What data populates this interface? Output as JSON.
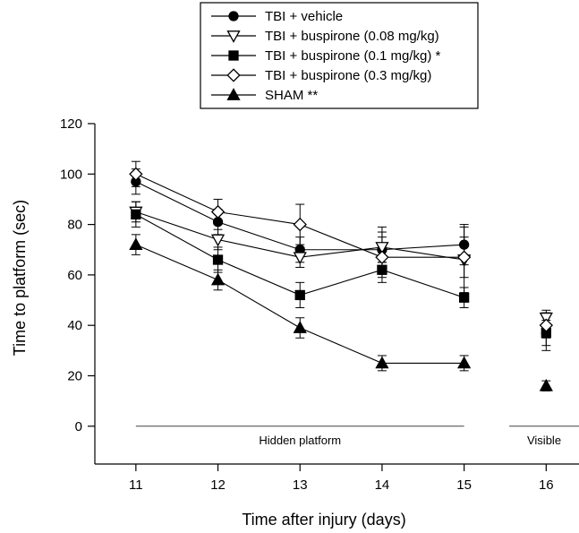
{
  "chart_data": {
    "type": "line",
    "xlabel": "Time after injury (days)",
    "ylabel": "Time to platform (sec)",
    "xlim": [
      10.5,
      16.4
    ],
    "ylim": [
      -15,
      120
    ],
    "x_ticks": [
      11,
      12,
      13,
      14,
      15,
      16
    ],
    "y_ticks": [
      0,
      20,
      40,
      60,
      80,
      100,
      120
    ],
    "grid": false,
    "legend_position": "top",
    "phases": [
      {
        "label": "Hidden platform",
        "x_start": 11,
        "x_end": 15,
        "y": 0
      },
      {
        "label": "Visible",
        "x_start": 15.55,
        "x_end": 16.4,
        "y": 0
      }
    ],
    "series": [
      {
        "name": "TBI + vehicle",
        "marker": "circle",
        "filled": true,
        "points": [
          {
            "x": 11,
            "y": 97,
            "err": 5
          },
          {
            "x": 12,
            "y": 81,
            "err": 5
          },
          {
            "x": 13,
            "y": 70,
            "err": 5
          },
          {
            "x": 14,
            "y": 70,
            "err": 5
          },
          {
            "x": 15,
            "y": 72,
            "err": 8
          },
          {
            "x": 16,
            "y": 37,
            "err": 5,
            "connected": false
          }
        ]
      },
      {
        "name": "TBI + buspirone (0.08 mg/kg)",
        "marker": "triangle-down",
        "filled": false,
        "points": [
          {
            "x": 11,
            "y": 85,
            "err": 4
          },
          {
            "x": 12,
            "y": 74,
            "err": 4
          },
          {
            "x": 13,
            "y": 67,
            "err": 4
          },
          {
            "x": 14,
            "y": 71,
            "err": 8
          },
          {
            "x": 15,
            "y": 66,
            "err": 13
          },
          {
            "x": 16,
            "y": 43,
            "err": 3,
            "connected": false
          }
        ]
      },
      {
        "name": "TBI + buspirone (0.1 mg/kg) *",
        "marker": "square",
        "filled": true,
        "points": [
          {
            "x": 11,
            "y": 84,
            "err": 5
          },
          {
            "x": 12,
            "y": 66,
            "err": 5
          },
          {
            "x": 13,
            "y": 52,
            "err": 5
          },
          {
            "x": 14,
            "y": 62,
            "err": 3
          },
          {
            "x": 15,
            "y": 51,
            "err": 4
          },
          {
            "x": 16,
            "y": 37,
            "err": 7,
            "connected": false
          }
        ]
      },
      {
        "name": "TBI + buspirone (0.3 mg/kg)",
        "marker": "diamond",
        "filled": false,
        "points": [
          {
            "x": 11,
            "y": 100,
            "err": 5
          },
          {
            "x": 12,
            "y": 85,
            "err": 5
          },
          {
            "x": 13,
            "y": 80,
            "err": 8
          },
          {
            "x": 14,
            "y": 67,
            "err": 10
          },
          {
            "x": 15,
            "y": 67,
            "err": 8
          },
          {
            "x": 16,
            "y": 40,
            "err": 5,
            "connected": false
          }
        ]
      },
      {
        "name": "SHAM **",
        "marker": "triangle-up",
        "filled": true,
        "points": [
          {
            "x": 11,
            "y": 72,
            "err": 4
          },
          {
            "x": 12,
            "y": 58,
            "err": 4
          },
          {
            "x": 13,
            "y": 39,
            "err": 4
          },
          {
            "x": 14,
            "y": 25,
            "err": 3
          },
          {
            "x": 15,
            "y": 25,
            "err": 3
          },
          {
            "x": 16,
            "y": 16,
            "err": 2,
            "connected": false
          }
        ]
      }
    ]
  }
}
